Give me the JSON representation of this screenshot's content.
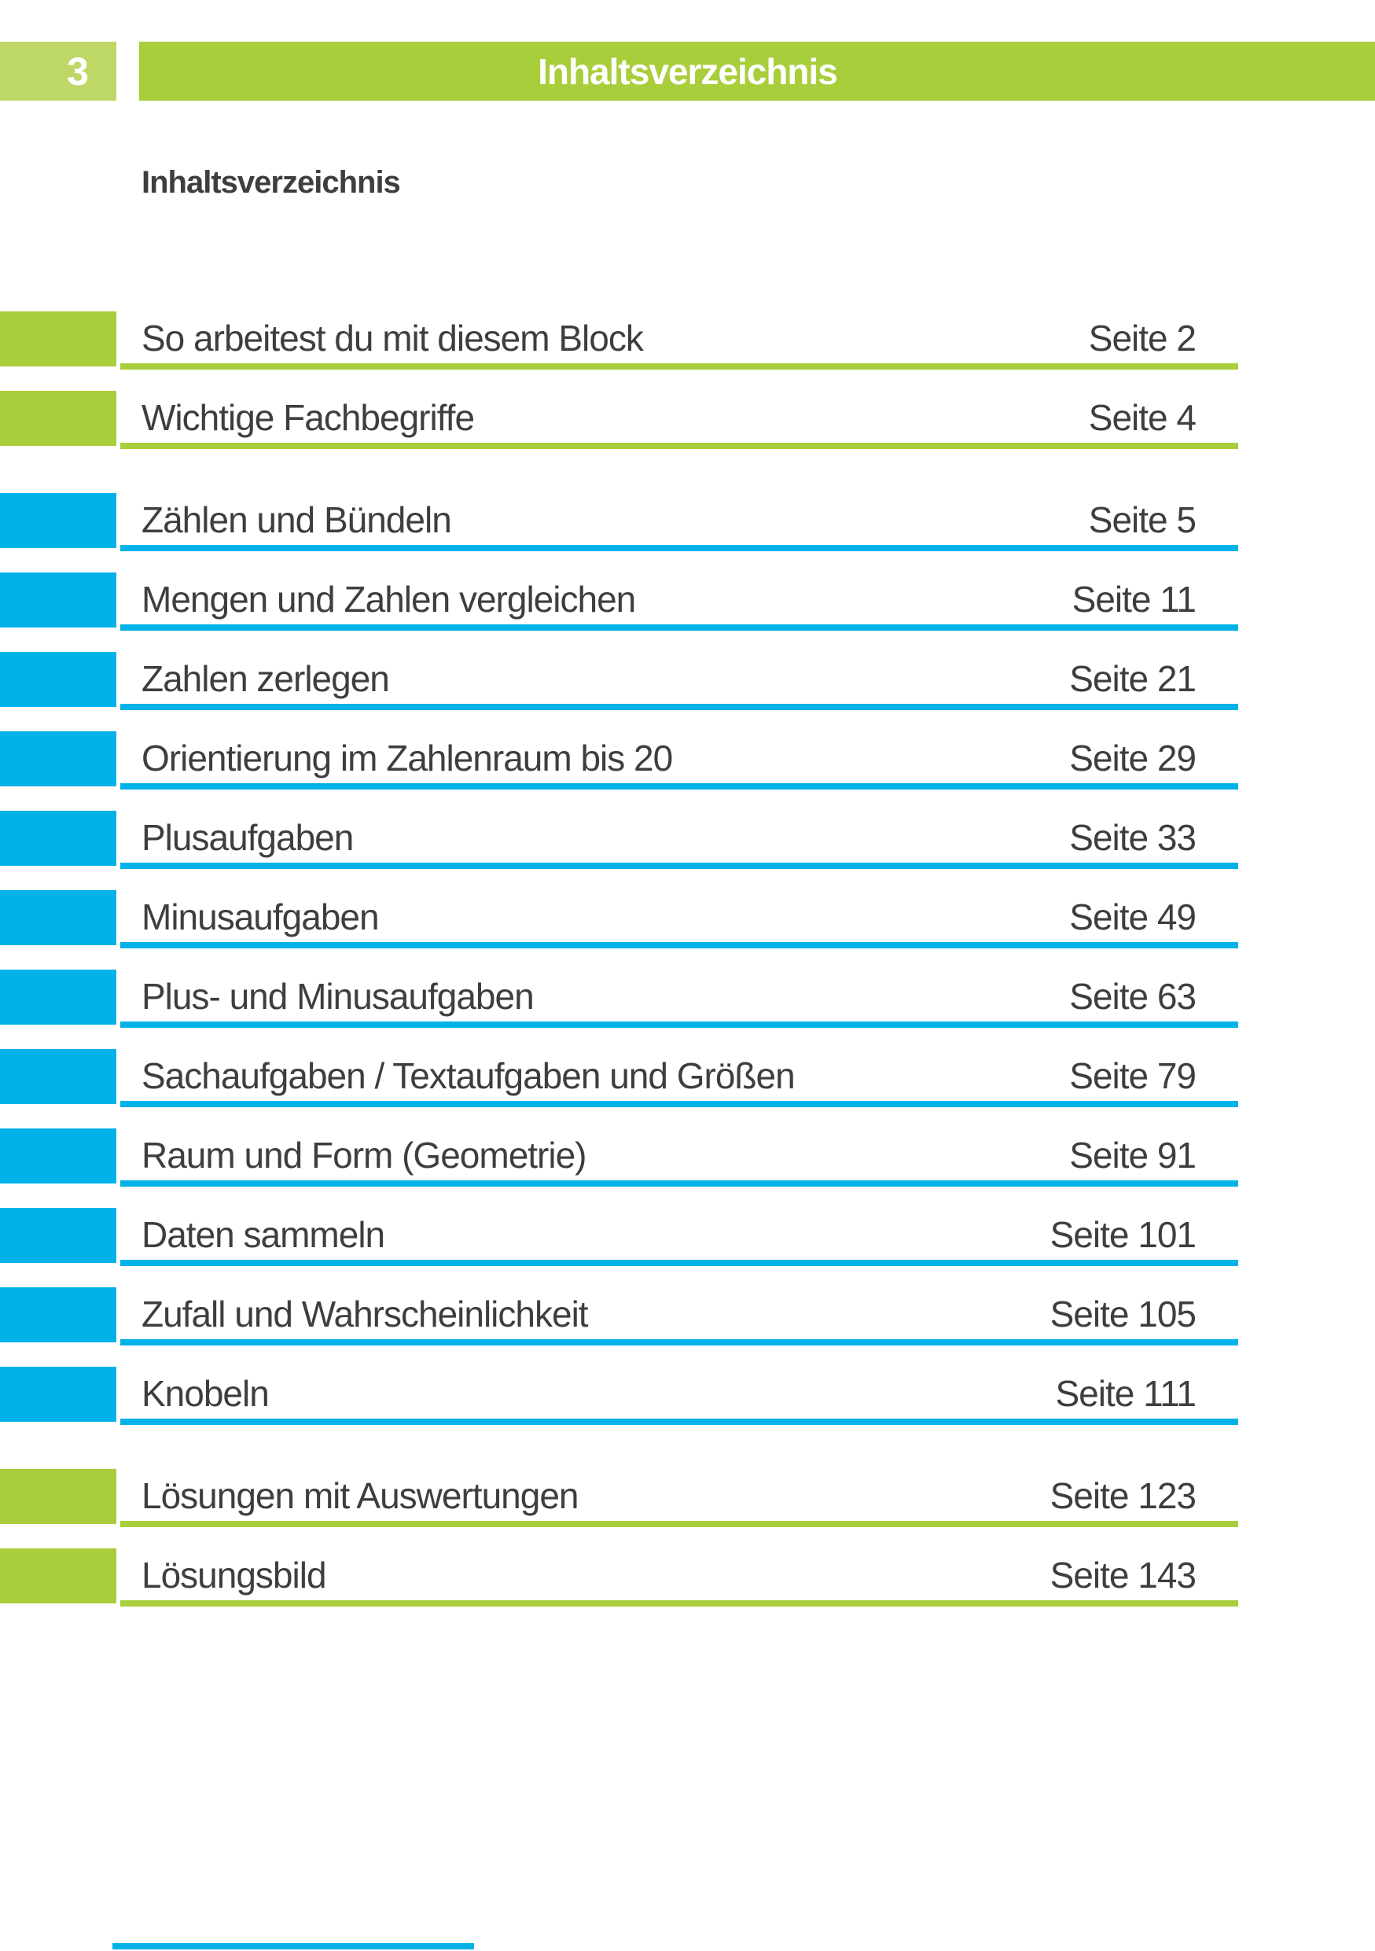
{
  "page_number": "3",
  "header": {
    "title": "Inhaltsverzeichnis"
  },
  "section_heading": "Inhaltsverzeichnis",
  "colors": {
    "green": "#a8ce3b",
    "light_green": "#bdd867",
    "blue": "#00b2e8",
    "text": "#3e3e40"
  },
  "toc": {
    "items": [
      {
        "title": "So arbeitest du mit diesem Block",
        "page_label": "Seite 2",
        "color": "green",
        "group": "intro"
      },
      {
        "title": "Wichtige Fachbegriffe",
        "page_label": "Seite 4",
        "color": "green",
        "group": "intro"
      },
      {
        "title": "Zählen und Bündeln",
        "page_label": "Seite 5",
        "color": "blue",
        "group": "topics"
      },
      {
        "title": "Mengen und Zahlen vergleichen",
        "page_label": "Seite 11",
        "color": "blue",
        "group": "topics"
      },
      {
        "title": "Zahlen zerlegen",
        "page_label": "Seite 21",
        "color": "blue",
        "group": "topics"
      },
      {
        "title": "Orientierung im Zahlenraum bis 20",
        "page_label": "Seite 29",
        "color": "blue",
        "group": "topics"
      },
      {
        "title": "Plusaufgaben",
        "page_label": "Seite 33",
        "color": "blue",
        "group": "topics"
      },
      {
        "title": "Minusaufgaben",
        "page_label": "Seite 49",
        "color": "blue",
        "group": "topics"
      },
      {
        "title": "Plus- und Minusaufgaben",
        "page_label": "Seite 63",
        "color": "blue",
        "group": "topics"
      },
      {
        "title": "Sachaufgaben / Textaufgaben und Größen",
        "page_label": "Seite 79",
        "color": "blue",
        "group": "topics"
      },
      {
        "title": "Raum und Form (Geometrie)",
        "page_label": "Seite 91",
        "color": "blue",
        "group": "topics"
      },
      {
        "title": "Daten sammeln",
        "page_label": "Seite 101",
        "color": "blue",
        "group": "topics"
      },
      {
        "title": "Zufall und Wahrscheinlichkeit",
        "page_label": "Seite 105",
        "color": "blue",
        "group": "topics"
      },
      {
        "title": "Knobeln",
        "page_label": "Seite 111",
        "color": "blue",
        "group": "topics"
      },
      {
        "title": "Lösungen mit Auswertungen",
        "page_label": "Seite 123",
        "color": "green",
        "group": "solutions"
      },
      {
        "title": "Lösungsbild",
        "page_label": "Seite 143",
        "color": "green",
        "group": "solutions"
      }
    ]
  }
}
